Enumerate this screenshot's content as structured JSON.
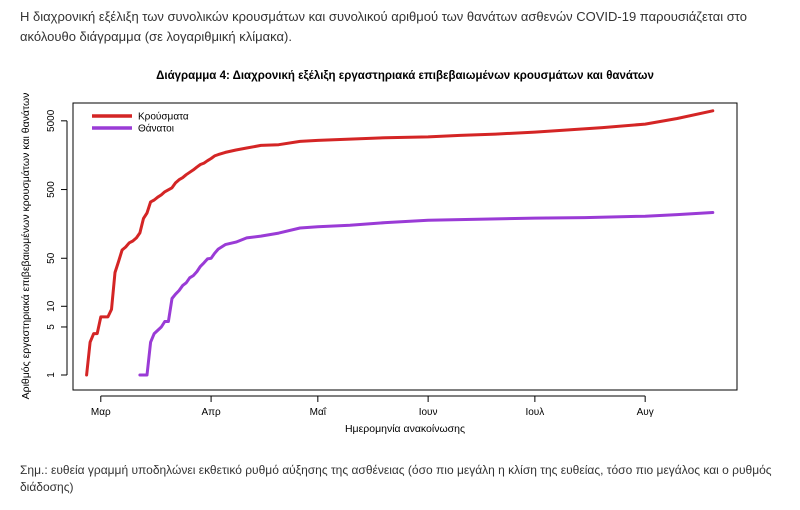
{
  "intro_text": "Η διαχρονική εξέλιξη των συνολικών κρουσμάτων και συνολικού αριθμού των θανάτων ασθενών COVID-19 παρουσιάζεται στο ακόλουθο διάγραμμα (σε λογαριθμική κλίμακα).",
  "note_text": "Σημ.: ευθεία γραμμή υποδηλώνει εκθετικό ρυθμό αύξησης της ασθένειας (όσο πιο μεγάλη η κλίση της ευθείας, τόσο πιο μεγάλος και ο ρυθμός διάδοσης)",
  "colors": {
    "cases": "#d42525",
    "deaths": "#9a3bd6"
  },
  "chart_data": {
    "type": "line",
    "title": "Διάγραμμα 4: Διαχρονική εξέλιξη εργαστηριακά επιβεβαιωμένων κρουσμάτων και θανάτων",
    "xlabel": "Ημερομηνία ανακοίνωσης",
    "ylabel": "Αριθμός εργαστηριακά επιβεβαιωμένων κρουσμάτων και θανάτων",
    "y_scale": "log",
    "ylim": [
      1,
      6500
    ],
    "y_ticks": [
      1,
      5,
      10,
      50,
      500,
      5000
    ],
    "xlim": [
      "2020-02-25",
      "2020-08-24"
    ],
    "x_ticks": [
      {
        "date": "2020-03-01",
        "label": "Μαρ"
      },
      {
        "date": "2020-04-01",
        "label": "Απρ"
      },
      {
        "date": "2020-05-01",
        "label": "Μαΐ"
      },
      {
        "date": "2020-06-01",
        "label": "Ιουν"
      },
      {
        "date": "2020-07-01",
        "label": "Ιουλ"
      },
      {
        "date": "2020-08-01",
        "label": "Αυγ"
      }
    ],
    "legend": "top-left",
    "series": [
      {
        "name": "Κρούσματα",
        "points": [
          [
            "2020-02-26",
            1
          ],
          [
            "2020-02-27",
            3
          ],
          [
            "2020-02-28",
            4
          ],
          [
            "2020-02-29",
            4
          ],
          [
            "2020-03-01",
            7
          ],
          [
            "2020-03-03",
            7
          ],
          [
            "2020-03-04",
            9
          ],
          [
            "2020-03-05",
            31
          ],
          [
            "2020-03-06",
            45
          ],
          [
            "2020-03-07",
            66
          ],
          [
            "2020-03-08",
            73
          ],
          [
            "2020-03-09",
            84
          ],
          [
            "2020-03-10",
            89
          ],
          [
            "2020-03-11",
            99
          ],
          [
            "2020-03-12",
            117
          ],
          [
            "2020-03-13",
            190
          ],
          [
            "2020-03-14",
            228
          ],
          [
            "2020-03-15",
            331
          ],
          [
            "2020-03-16",
            352
          ],
          [
            "2020-03-17",
            387
          ],
          [
            "2020-03-18",
            418
          ],
          [
            "2020-03-19",
            464
          ],
          [
            "2020-03-20",
            495
          ],
          [
            "2020-03-21",
            530
          ],
          [
            "2020-03-22",
            624
          ],
          [
            "2020-03-23",
            695
          ],
          [
            "2020-03-24",
            743
          ],
          [
            "2020-03-25",
            821
          ],
          [
            "2020-03-26",
            892
          ],
          [
            "2020-03-27",
            966
          ],
          [
            "2020-03-28",
            1061
          ],
          [
            "2020-03-29",
            1156
          ],
          [
            "2020-03-30",
            1212
          ],
          [
            "2020-03-31",
            1314
          ],
          [
            "2020-04-01",
            1415
          ],
          [
            "2020-04-02",
            1544
          ],
          [
            "2020-04-03",
            1613
          ],
          [
            "2020-04-05",
            1735
          ],
          [
            "2020-04-08",
            1884
          ],
          [
            "2020-04-11",
            2011
          ],
          [
            "2020-04-15",
            2192
          ],
          [
            "2020-04-20",
            2245
          ],
          [
            "2020-04-26",
            2506
          ],
          [
            "2020-05-01",
            2591
          ],
          [
            "2020-05-10",
            2710
          ],
          [
            "2020-05-20",
            2840
          ],
          [
            "2020-06-01",
            2918
          ],
          [
            "2020-06-10",
            3068
          ],
          [
            "2020-06-20",
            3203
          ],
          [
            "2020-07-01",
            3432
          ],
          [
            "2020-07-10",
            3672
          ],
          [
            "2020-07-20",
            3983
          ],
          [
            "2020-08-01",
            4477
          ],
          [
            "2020-08-10",
            5400
          ],
          [
            "2020-08-20",
            7000
          ]
        ]
      },
      {
        "name": "Θάνατοι",
        "points": [
          [
            "2020-03-12",
            1
          ],
          [
            "2020-03-14",
            1
          ],
          [
            "2020-03-15",
            3
          ],
          [
            "2020-03-16",
            4
          ],
          [
            "2020-03-18",
            5
          ],
          [
            "2020-03-19",
            6
          ],
          [
            "2020-03-20",
            6
          ],
          [
            "2020-03-21",
            13
          ],
          [
            "2020-03-22",
            15
          ],
          [
            "2020-03-23",
            17
          ],
          [
            "2020-03-24",
            20
          ],
          [
            "2020-03-25",
            22
          ],
          [
            "2020-03-26",
            26
          ],
          [
            "2020-03-27",
            28
          ],
          [
            "2020-03-28",
            32
          ],
          [
            "2020-03-29",
            38
          ],
          [
            "2020-03-30",
            43
          ],
          [
            "2020-03-31",
            49
          ],
          [
            "2020-04-01",
            50
          ],
          [
            "2020-04-02",
            59
          ],
          [
            "2020-04-03",
            68
          ],
          [
            "2020-04-05",
            79
          ],
          [
            "2020-04-08",
            86
          ],
          [
            "2020-04-11",
            99
          ],
          [
            "2020-04-15",
            105
          ],
          [
            "2020-04-20",
            116
          ],
          [
            "2020-04-26",
            138
          ],
          [
            "2020-05-01",
            144
          ],
          [
            "2020-05-10",
            151
          ],
          [
            "2020-05-20",
            165
          ],
          [
            "2020-06-01",
            179
          ],
          [
            "2020-06-15",
            185
          ],
          [
            "2020-07-01",
            192
          ],
          [
            "2020-07-15",
            195
          ],
          [
            "2020-08-01",
            205
          ],
          [
            "2020-08-10",
            216
          ],
          [
            "2020-08-20",
            232
          ]
        ]
      }
    ]
  }
}
